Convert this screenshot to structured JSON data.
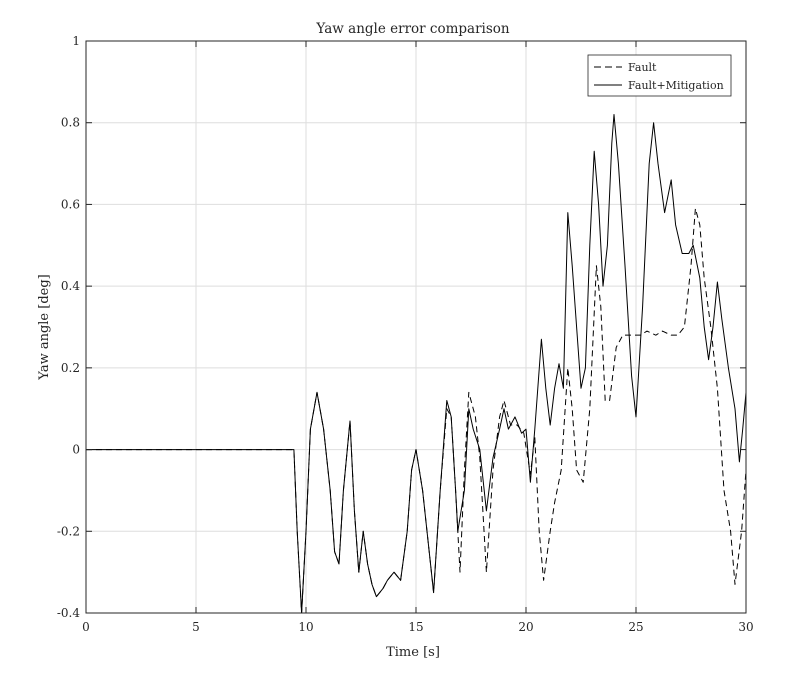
{
  "chart_data": {
    "type": "line",
    "title": "Yaw angle error comparison",
    "xlabel": "Time [s]",
    "ylabel": "Yaw angle [deg]",
    "xlim": [
      0,
      30
    ],
    "ylim": [
      -0.4,
      1
    ],
    "xticks": [
      0,
      5,
      10,
      15,
      20,
      25,
      30
    ],
    "yticks": [
      -0.4,
      -0.2,
      0,
      0.2,
      0.4,
      0.6,
      0.8,
      1
    ],
    "xtick_labels": [
      "0",
      "5",
      "10",
      "15",
      "20",
      "25",
      "30"
    ],
    "ytick_labels": [
      "-0.4",
      "-0.2",
      "0",
      "0.2",
      "0.4",
      "0.6",
      "0.8",
      "1"
    ],
    "grid": true,
    "legend_position": "top-right",
    "series": [
      {
        "name": "Fault",
        "style": "dashed",
        "color": "#000000",
        "points": [
          [
            0,
            0
          ],
          [
            9.45,
            0
          ],
          [
            9.6,
            -0.2
          ],
          [
            9.8,
            -0.4
          ],
          [
            10.0,
            -0.2
          ],
          [
            10.2,
            0.05
          ],
          [
            10.5,
            0.14
          ],
          [
            10.8,
            0.05
          ],
          [
            11.1,
            -0.1
          ],
          [
            11.3,
            -0.25
          ],
          [
            11.5,
            -0.28
          ],
          [
            11.7,
            -0.1
          ],
          [
            12.0,
            0.07
          ],
          [
            12.2,
            -0.15
          ],
          [
            12.4,
            -0.3
          ],
          [
            12.6,
            -0.2
          ],
          [
            12.8,
            -0.28
          ],
          [
            13.0,
            -0.33
          ],
          [
            13.2,
            -0.36
          ],
          [
            13.5,
            -0.34
          ],
          [
            13.7,
            -0.32
          ],
          [
            14.0,
            -0.3
          ],
          [
            14.3,
            -0.32
          ],
          [
            14.6,
            -0.2
          ],
          [
            14.8,
            -0.05
          ],
          [
            15.0,
            0.0
          ],
          [
            15.3,
            -0.1
          ],
          [
            15.6,
            -0.25
          ],
          [
            15.8,
            -0.35
          ],
          [
            16.1,
            -0.1
          ],
          [
            16.4,
            0.1
          ],
          [
            16.6,
            0.08
          ],
          [
            16.8,
            -0.1
          ],
          [
            17.0,
            -0.3
          ],
          [
            17.2,
            -0.05
          ],
          [
            17.4,
            0.14
          ],
          [
            17.7,
            0.08
          ],
          [
            17.9,
            -0.02
          ],
          [
            18.2,
            -0.3
          ],
          [
            18.5,
            -0.05
          ],
          [
            18.8,
            0.08
          ],
          [
            19.0,
            0.12
          ],
          [
            19.3,
            0.06
          ],
          [
            19.6,
            0.06
          ],
          [
            19.9,
            0.04
          ],
          [
            20.2,
            -0.06
          ],
          [
            20.4,
            0.03
          ],
          [
            20.6,
            -0.2
          ],
          [
            20.8,
            -0.32
          ],
          [
            21.1,
            -0.2
          ],
          [
            21.3,
            -0.13
          ],
          [
            21.6,
            -0.05
          ],
          [
            21.9,
            0.2
          ],
          [
            22.1,
            0.1
          ],
          [
            22.3,
            -0.05
          ],
          [
            22.6,
            -0.08
          ],
          [
            22.9,
            0.1
          ],
          [
            23.2,
            0.45
          ],
          [
            23.4,
            0.35
          ],
          [
            23.6,
            0.12
          ],
          [
            23.8,
            0.12
          ],
          [
            24.1,
            0.25
          ],
          [
            24.4,
            0.28
          ],
          [
            24.8,
            0.28
          ],
          [
            25.2,
            0.28
          ],
          [
            25.5,
            0.29
          ],
          [
            25.9,
            0.28
          ],
          [
            26.2,
            0.29
          ],
          [
            26.6,
            0.28
          ],
          [
            26.9,
            0.28
          ],
          [
            27.2,
            0.3
          ],
          [
            27.5,
            0.45
          ],
          [
            27.7,
            0.59
          ],
          [
            27.9,
            0.55
          ],
          [
            28.1,
            0.42
          ],
          [
            28.4,
            0.3
          ],
          [
            28.7,
            0.15
          ],
          [
            29.0,
            -0.1
          ],
          [
            29.3,
            -0.2
          ],
          [
            29.5,
            -0.33
          ],
          [
            29.8,
            -0.2
          ],
          [
            30.0,
            -0.05
          ]
        ]
      },
      {
        "name": "Fault+Mitigation",
        "style": "solid",
        "color": "#000000",
        "points": [
          [
            0,
            0
          ],
          [
            9.45,
            0
          ],
          [
            9.6,
            -0.2
          ],
          [
            9.8,
            -0.4
          ],
          [
            10.0,
            -0.2
          ],
          [
            10.2,
            0.05
          ],
          [
            10.5,
            0.14
          ],
          [
            10.8,
            0.05
          ],
          [
            11.1,
            -0.1
          ],
          [
            11.3,
            -0.25
          ],
          [
            11.5,
            -0.28
          ],
          [
            11.7,
            -0.1
          ],
          [
            12.0,
            0.07
          ],
          [
            12.2,
            -0.15
          ],
          [
            12.4,
            -0.3
          ],
          [
            12.6,
            -0.2
          ],
          [
            12.8,
            -0.28
          ],
          [
            13.0,
            -0.33
          ],
          [
            13.2,
            -0.36
          ],
          [
            13.5,
            -0.34
          ],
          [
            13.7,
            -0.32
          ],
          [
            14.0,
            -0.3
          ],
          [
            14.3,
            -0.32
          ],
          [
            14.6,
            -0.2
          ],
          [
            14.8,
            -0.05
          ],
          [
            15.0,
            0.0
          ],
          [
            15.3,
            -0.1
          ],
          [
            15.6,
            -0.25
          ],
          [
            15.8,
            -0.35
          ],
          [
            16.1,
            -0.1
          ],
          [
            16.4,
            0.12
          ],
          [
            16.6,
            0.08
          ],
          [
            16.8,
            -0.1
          ],
          [
            16.9,
            -0.2
          ],
          [
            17.2,
            -0.1
          ],
          [
            17.4,
            0.1
          ],
          [
            17.6,
            0.05
          ],
          [
            17.9,
            0.0
          ],
          [
            18.2,
            -0.15
          ],
          [
            18.5,
            -0.02
          ],
          [
            18.8,
            0.05
          ],
          [
            19.0,
            0.1
          ],
          [
            19.2,
            0.05
          ],
          [
            19.5,
            0.08
          ],
          [
            19.8,
            0.04
          ],
          [
            20.0,
            0.05
          ],
          [
            20.2,
            -0.08
          ],
          [
            20.4,
            0.05
          ],
          [
            20.7,
            0.27
          ],
          [
            20.9,
            0.15
          ],
          [
            21.1,
            0.06
          ],
          [
            21.3,
            0.15
          ],
          [
            21.5,
            0.21
          ],
          [
            21.7,
            0.15
          ],
          [
            21.9,
            0.58
          ],
          [
            22.1,
            0.45
          ],
          [
            22.3,
            0.3
          ],
          [
            22.5,
            0.15
          ],
          [
            22.7,
            0.2
          ],
          [
            22.9,
            0.5
          ],
          [
            23.1,
            0.73
          ],
          [
            23.3,
            0.6
          ],
          [
            23.5,
            0.4
          ],
          [
            23.7,
            0.5
          ],
          [
            23.9,
            0.75
          ],
          [
            24.0,
            0.82
          ],
          [
            24.2,
            0.7
          ],
          [
            24.5,
            0.45
          ],
          [
            24.8,
            0.18
          ],
          [
            25.0,
            0.08
          ],
          [
            25.3,
            0.35
          ],
          [
            25.6,
            0.7
          ],
          [
            25.8,
            0.8
          ],
          [
            26.0,
            0.7
          ],
          [
            26.3,
            0.58
          ],
          [
            26.6,
            0.66
          ],
          [
            26.8,
            0.55
          ],
          [
            27.1,
            0.48
          ],
          [
            27.4,
            0.48
          ],
          [
            27.6,
            0.5
          ],
          [
            27.9,
            0.42
          ],
          [
            28.1,
            0.3
          ],
          [
            28.3,
            0.22
          ],
          [
            28.5,
            0.3
          ],
          [
            28.7,
            0.41
          ],
          [
            28.9,
            0.32
          ],
          [
            29.2,
            0.2
          ],
          [
            29.5,
            0.1
          ],
          [
            29.7,
            -0.03
          ],
          [
            29.85,
            0.05
          ],
          [
            30.0,
            0.14
          ]
        ]
      }
    ]
  }
}
